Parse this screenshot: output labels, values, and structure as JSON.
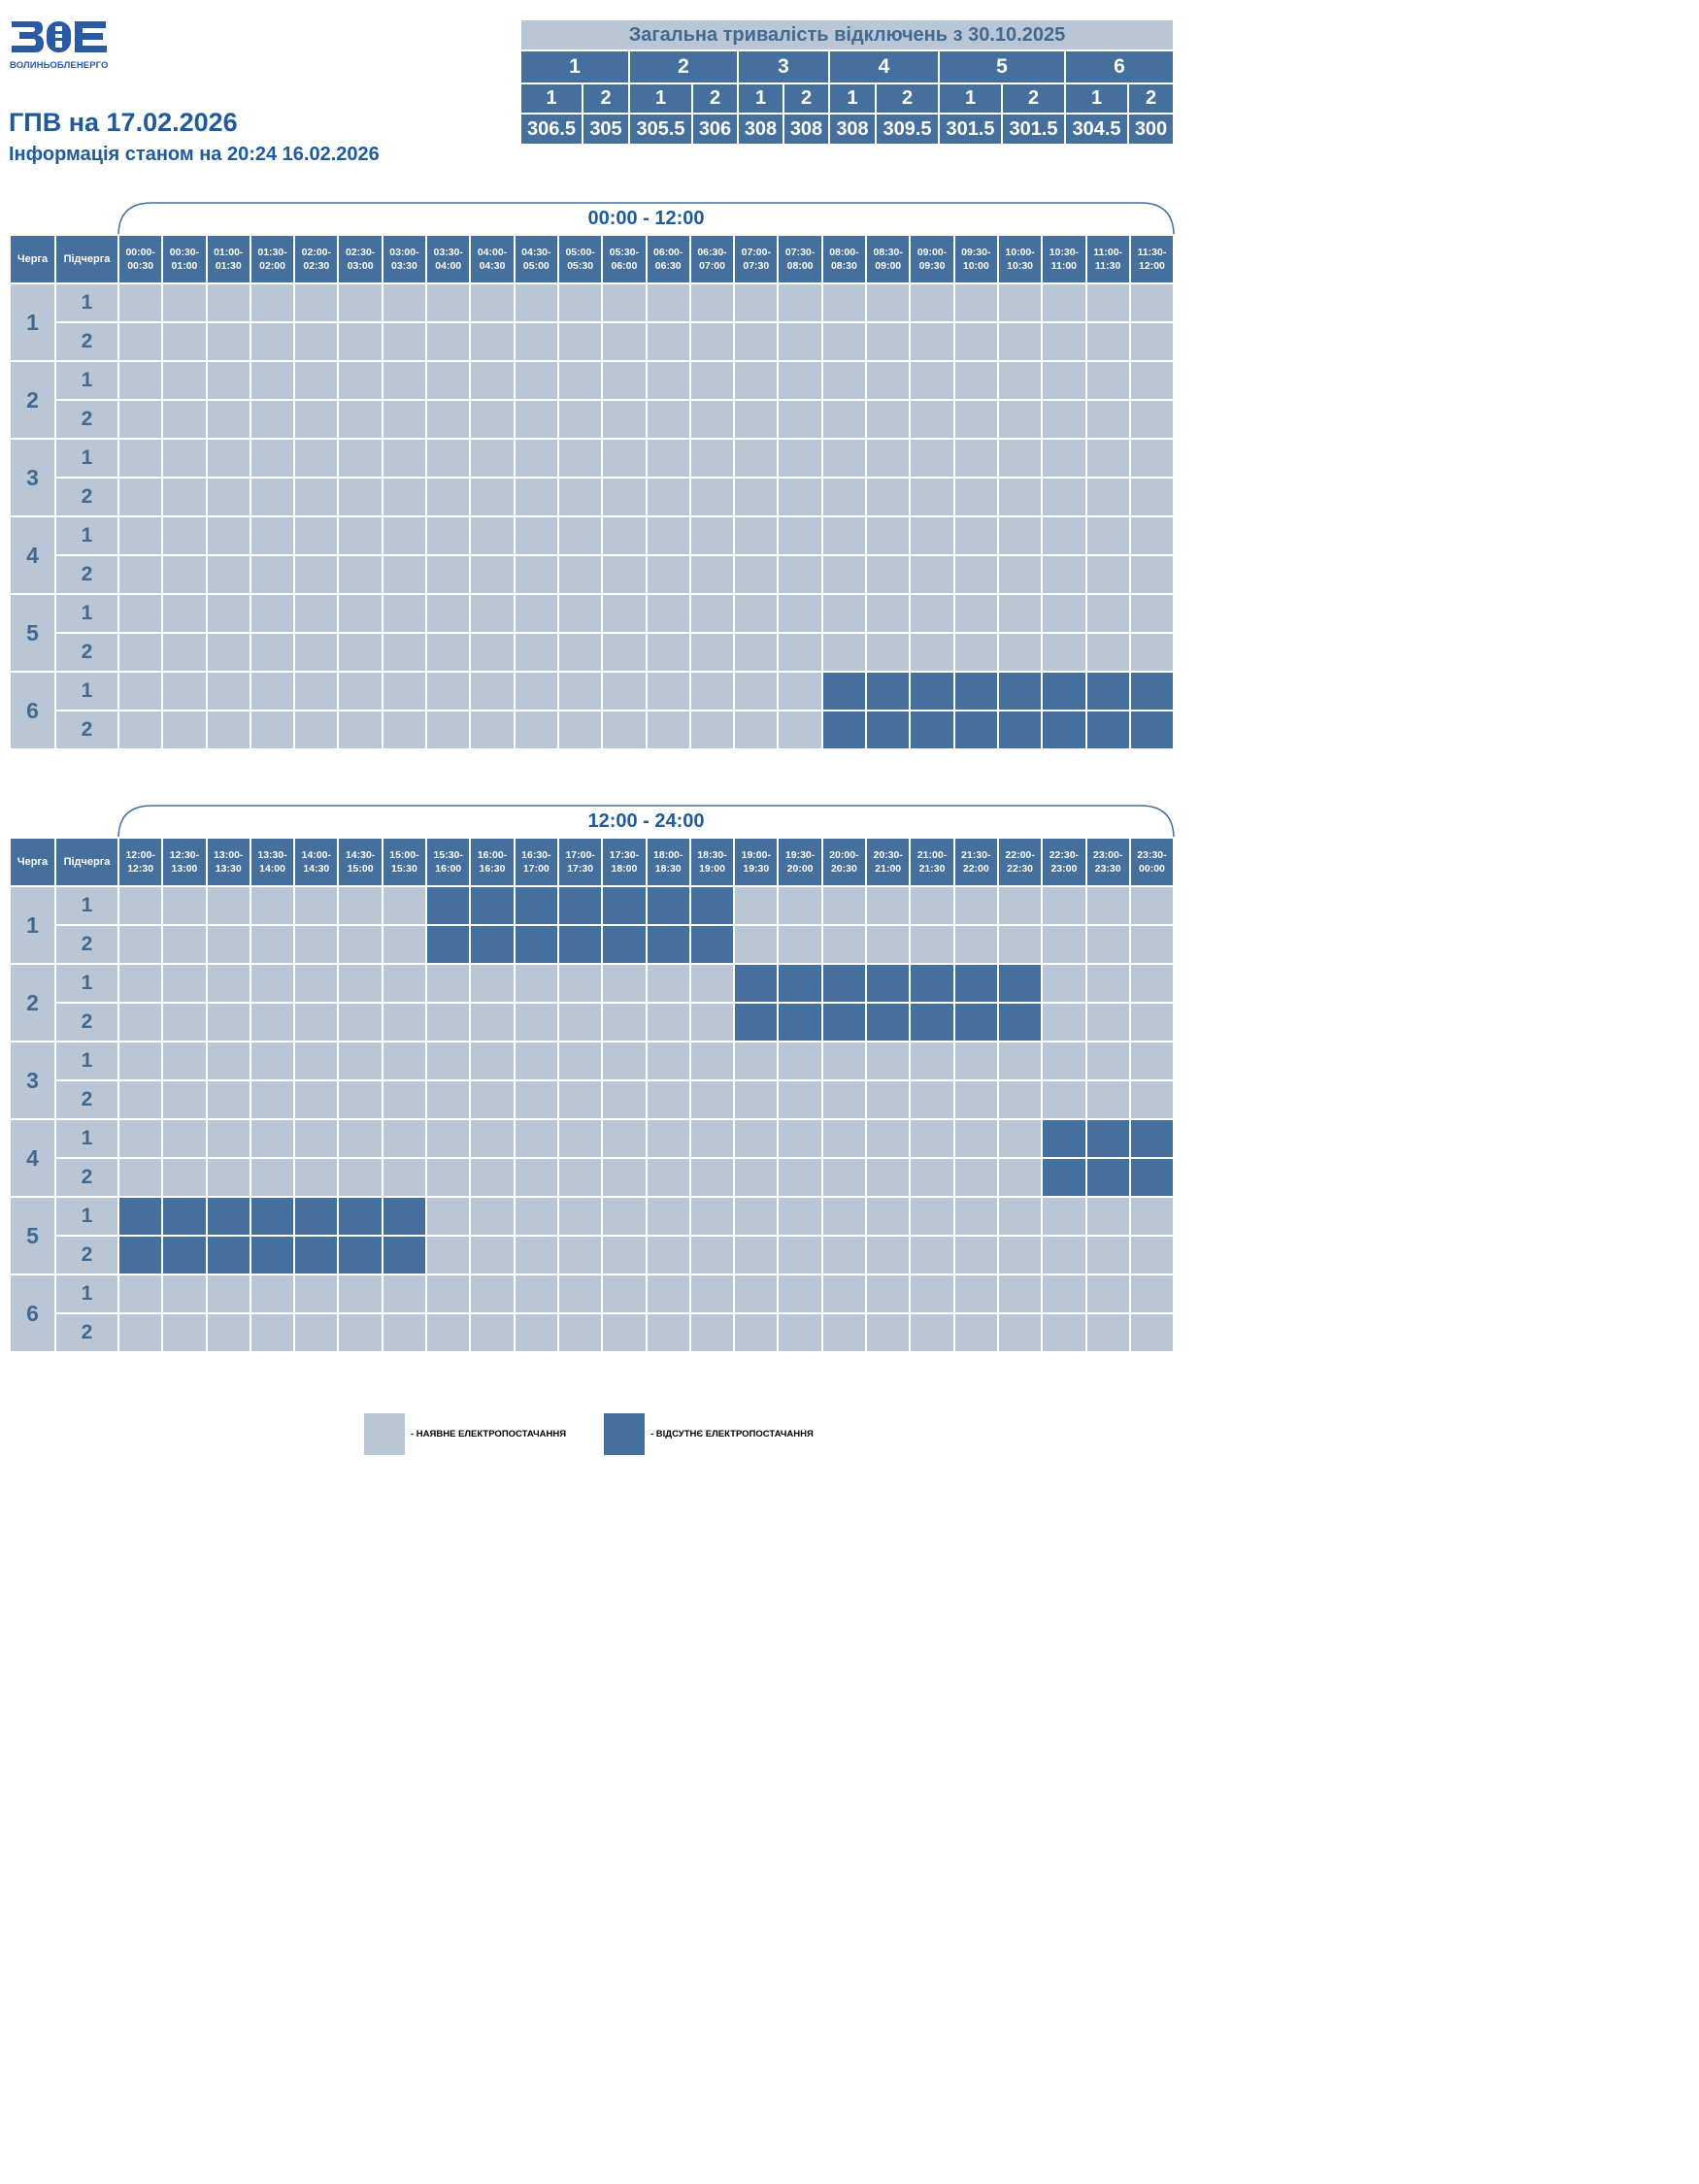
{
  "logo": {
    "mark": "ВОЕ",
    "subtitle": "ВОЛИНЬОБЛЕНЕРГО"
  },
  "title": "ГПВ на 17.02.2026",
  "info": "Інформація станом на 20:24 16.02.2026",
  "summary": {
    "title": "Загальна тривалість відключень з 30.10.2025",
    "queues": [
      "1",
      "2",
      "3",
      "4",
      "5",
      "6"
    ],
    "subqueues": [
      "1",
      "2",
      "1",
      "2",
      "1",
      "2",
      "1",
      "2",
      "1",
      "2",
      "1",
      "2"
    ],
    "values": [
      "306.5",
      "305",
      "305.5",
      "306",
      "308",
      "308",
      "308",
      "309.5",
      "301.5",
      "301.5",
      "304.5",
      "300"
    ]
  },
  "columns": {
    "queue": "Черга",
    "subqueue": "Підчерга"
  },
  "sections": [
    {
      "label": "00:00 - 12:00",
      "slots": [
        "00:00-00:30",
        "00:30-01:00",
        "01:00-01:30",
        "01:30-02:00",
        "02:00-02:30",
        "02:30-03:00",
        "03:00-03:30",
        "03:30-04:00",
        "04:00-04:30",
        "04:30-05:00",
        "05:00-05:30",
        "05:30-06:00",
        "06:00-06:30",
        "06:30-07:00",
        "07:00-07:30",
        "07:30-08:00",
        "08:00-08:30",
        "08:30-09:00",
        "09:00-09:30",
        "09:30-10:00",
        "10:00-10:30",
        "10:30-11:00",
        "11:00-11:30",
        "11:30-12:00"
      ],
      "rows": [
        {
          "queue": "1",
          "sub": "1",
          "off": "000000000000000000000000"
        },
        {
          "queue": "1",
          "sub": "2",
          "off": "000000000000000000000000"
        },
        {
          "queue": "2",
          "sub": "1",
          "off": "000000000000000000000000"
        },
        {
          "queue": "2",
          "sub": "2",
          "off": "000000000000000000000000"
        },
        {
          "queue": "3",
          "sub": "1",
          "off": "000000000000000000000000"
        },
        {
          "queue": "3",
          "sub": "2",
          "off": "000000000000000000000000"
        },
        {
          "queue": "4",
          "sub": "1",
          "off": "000000000000000000000000"
        },
        {
          "queue": "4",
          "sub": "2",
          "off": "000000000000000000000000"
        },
        {
          "queue": "5",
          "sub": "1",
          "off": "000000000000000000000000"
        },
        {
          "queue": "5",
          "sub": "2",
          "off": "000000000000000000000000"
        },
        {
          "queue": "6",
          "sub": "1",
          "off": "000000000000000011111111"
        },
        {
          "queue": "6",
          "sub": "2",
          "off": "000000000000000011111111"
        }
      ]
    },
    {
      "label": "12:00 - 24:00",
      "slots": [
        "12:00-12:30",
        "12:30-13:00",
        "13:00-13:30",
        "13:30-14:00",
        "14:00-14:30",
        "14:30-15:00",
        "15:00-15:30",
        "15:30-16:00",
        "16:00-16:30",
        "16:30-17:00",
        "17:00-17:30",
        "17:30-18:00",
        "18:00-18:30",
        "18:30-19:00",
        "19:00-19:30",
        "19:30-20:00",
        "20:00-20:30",
        "20:30-21:00",
        "21:00-21:30",
        "21:30-22:00",
        "22:00-22:30",
        "22:30-23:00",
        "23:00-23:30",
        "23:30-00:00"
      ],
      "rows": [
        {
          "queue": "1",
          "sub": "1",
          "off": "000000011111110000000000"
        },
        {
          "queue": "1",
          "sub": "2",
          "off": "000000011111110000000000"
        },
        {
          "queue": "2",
          "sub": "1",
          "off": "000000000000001111111000"
        },
        {
          "queue": "2",
          "sub": "2",
          "off": "000000000000001111111000"
        },
        {
          "queue": "3",
          "sub": "1",
          "off": "000000000000000000000000"
        },
        {
          "queue": "3",
          "sub": "2",
          "off": "000000000000000000000000"
        },
        {
          "queue": "4",
          "sub": "1",
          "off": "000000000000000000000111"
        },
        {
          "queue": "4",
          "sub": "2",
          "off": "000000000000000000000111"
        },
        {
          "queue": "5",
          "sub": "1",
          "off": "111111100000000000000000"
        },
        {
          "queue": "5",
          "sub": "2",
          "off": "111111100000000000000000"
        },
        {
          "queue": "6",
          "sub": "1",
          "off": "000000000000000000000000"
        },
        {
          "queue": "6",
          "sub": "2",
          "off": "000000000000000000000000"
        }
      ]
    }
  ],
  "legend": {
    "available": "- НАЯВНЕ ЕЛЕКТРОПОСТАЧАННЯ",
    "unavailable": "- ВІДСУТНЄ ЕЛЕКТРОПОСТАЧАННЯ"
  },
  "colors": {
    "available": "#b8c6d6",
    "unavailable": "#456f9c",
    "accent": "#1f5b9c"
  }
}
